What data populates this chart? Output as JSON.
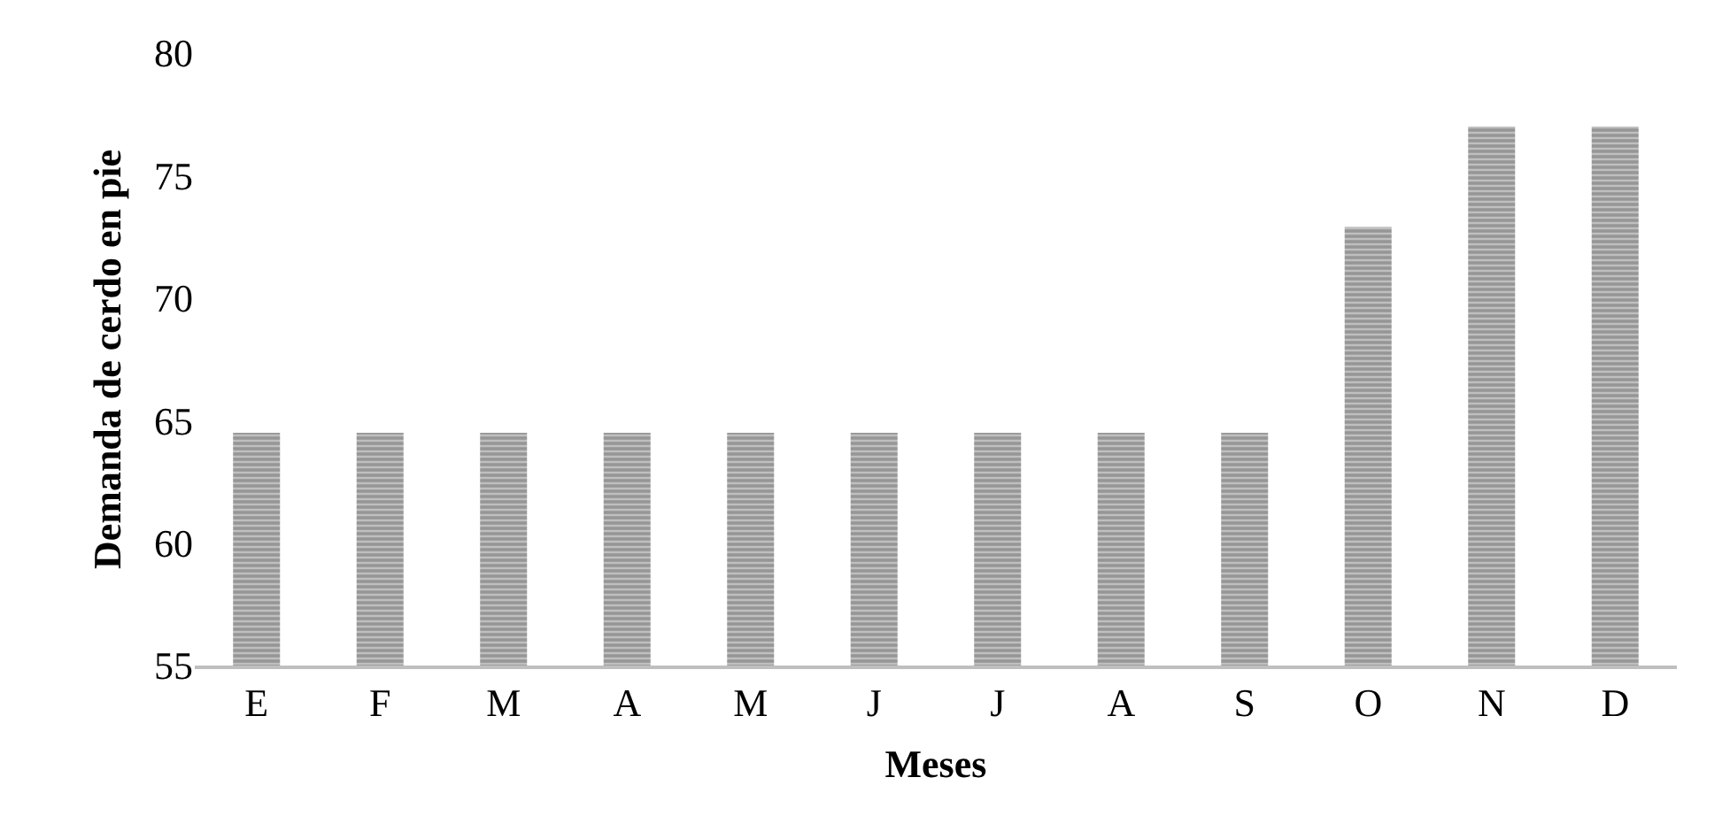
{
  "chart_data": {
    "type": "bar",
    "xlabel": "Meses",
    "ylabel": "Demanda de cerdo en pie",
    "categories": [
      "E",
      "F",
      "M",
      "A",
      "M",
      "J",
      "J",
      "A",
      "S",
      "O",
      "N",
      "D"
    ],
    "values": [
      64.5,
      64.5,
      64.5,
      64.5,
      64.5,
      64.5,
      64.5,
      64.5,
      64.5,
      72.9,
      77,
      77
    ],
    "color": "#6e6e6e",
    "ylim": [
      55,
      80
    ],
    "yticks": [
      55,
      60,
      65,
      70,
      75,
      80
    ]
  }
}
